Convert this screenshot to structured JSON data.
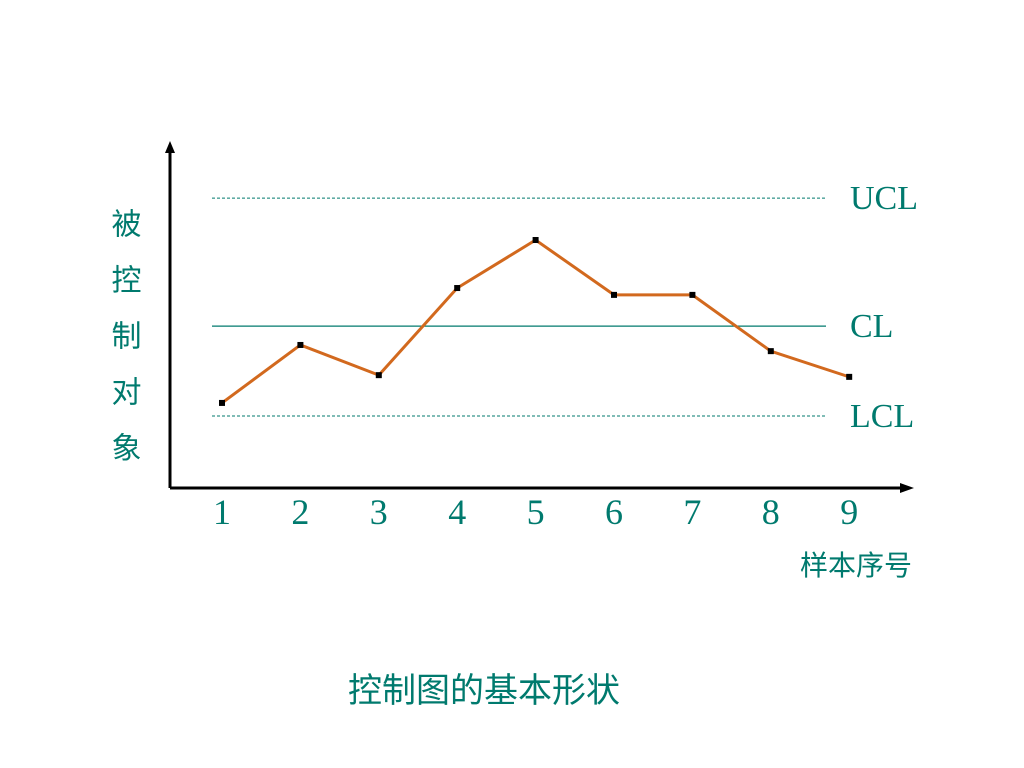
{
  "chart_data": {
    "type": "line",
    "title": "控制图的基本形状",
    "y_label": "被控制对象",
    "x_label": "样本序号",
    "categories": [
      "1",
      "2",
      "3",
      "4",
      "5",
      "6",
      "7",
      "8",
      "9"
    ],
    "series": [
      {
        "color": "#d2691e",
        "values": [
          2.48,
          4.17,
          3.29,
          5.83,
          7.23,
          5.63,
          5.63,
          3.99,
          3.24
        ]
      }
    ],
    "marker_color": "#000000",
    "ylim": [
      0,
      10
    ],
    "reference_lines": [
      {
        "label": "UCL",
        "value": 8.45,
        "style": "dashed"
      },
      {
        "label": "CL",
        "value": 4.72,
        "style": "solid"
      },
      {
        "label": "LCL",
        "value": 2.1,
        "style": "dashed"
      }
    ],
    "text_color": "#007a6e"
  }
}
